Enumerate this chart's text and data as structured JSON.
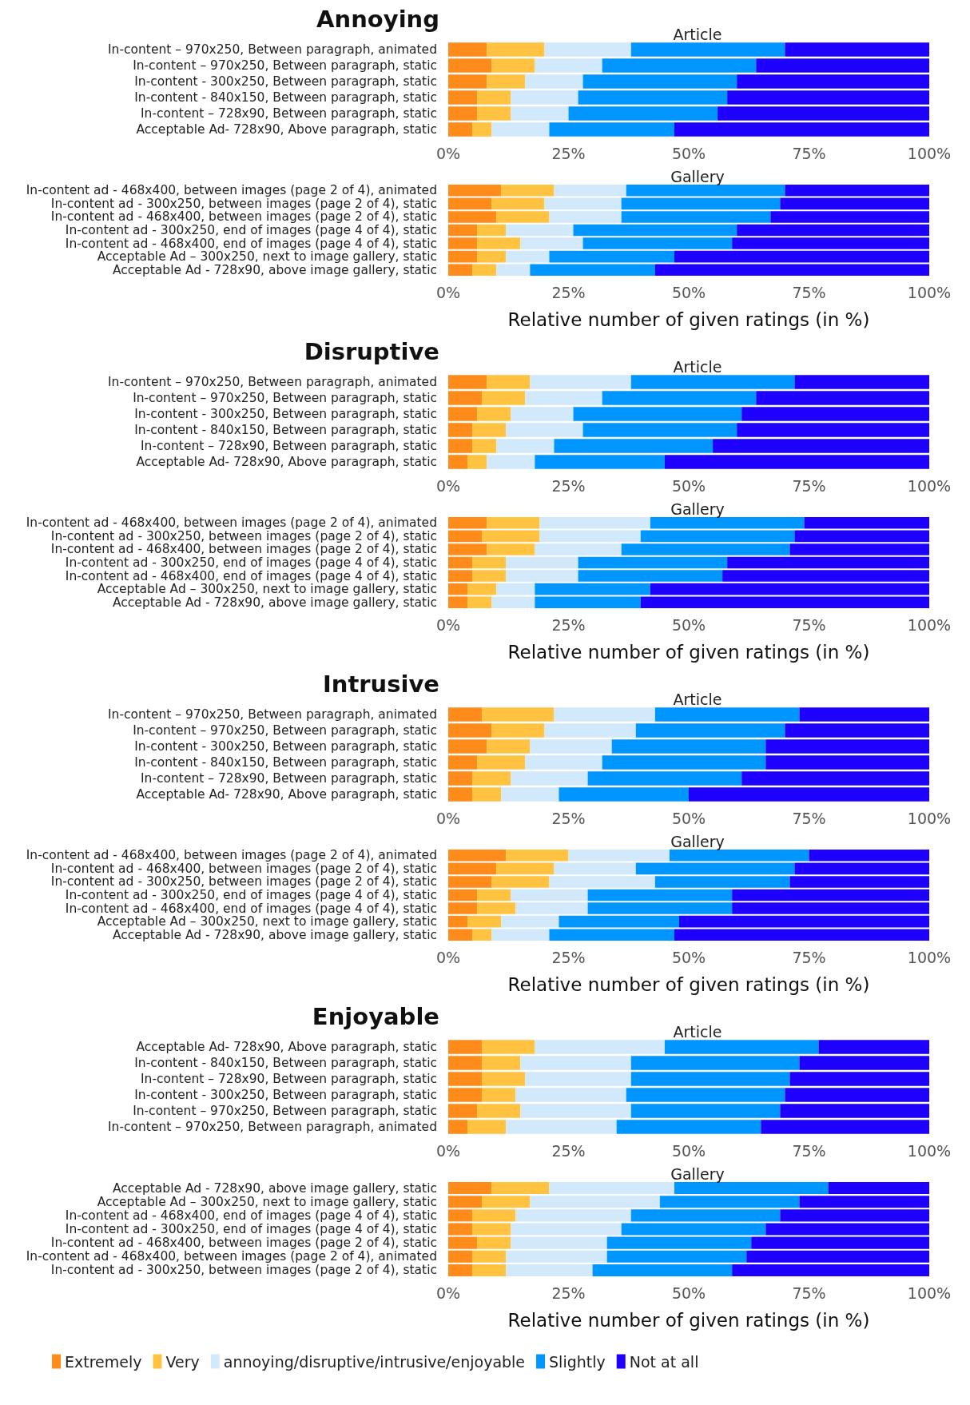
{
  "chart_data": [
    {
      "type": "bar",
      "orientation": "horizontal",
      "stacked": true,
      "title": "Annoying",
      "subtitle": "Article",
      "categories": [
        "In-content – 970x250, Between paragraph, animated",
        "In-content – 970x250, Between paragraph, static",
        "In-content - 300x250, Between paragraph, static",
        "In-content - 840x150, Between paragraph, static",
        "In-content – 728x90, Between paragraph, static",
        "Acceptable Ad- 728x90, Above paragraph, static"
      ],
      "series": [
        {
          "color": "#ff8c1a",
          "values": [
            8,
            9,
            8,
            6,
            6,
            5
          ]
        },
        {
          "color": "#ffc341",
          "values": [
            12,
            9,
            8,
            7,
            7,
            4
          ]
        },
        {
          "color": "#d1e9fb",
          "values": [
            18,
            14,
            12,
            14,
            12,
            12
          ]
        },
        {
          "color": "#0096ff",
          "values": [
            32,
            32,
            32,
            31,
            31,
            26
          ]
        },
        {
          "color": "#1e00ff",
          "values": [
            30,
            36,
            40,
            42,
            44,
            53
          ]
        }
      ],
      "xlim": [
        0,
        100
      ],
      "xticks": [
        {
          "value": 0,
          "label": "0%"
        },
        {
          "value": 25,
          "label": "25%"
        },
        {
          "value": 50,
          "label": "50%"
        },
        {
          "value": 75,
          "label": "75%"
        },
        {
          "value": 100,
          "label": "100%"
        }
      ],
      "grid": false,
      "legend": false
    },
    {
      "type": "bar",
      "orientation": "horizontal",
      "stacked": true,
      "subtitle": "Gallery",
      "xlabel": "Relative number of given ratings (in %)",
      "categories": [
        "In-content ad - 468x400, between images (page 2 of 4), animated",
        "In-content ad - 300x250, between images (page 2 of 4), static",
        "In-content ad - 468x400, between images (page 2 of 4), static",
        "In-content ad - 300x250, end of images (page 4 of 4), static",
        "In-content ad - 468x400, end of images (page 4 of 4), static",
        "Acceptable Ad – 300x250, next to image gallery, static",
        "Acceptable Ad - 728x90, above image gallery, static"
      ],
      "series": [
        {
          "color": "#ff8c1a",
          "values": [
            11,
            9,
            10,
            6,
            6,
            6,
            5
          ]
        },
        {
          "color": "#ffc341",
          "values": [
            11,
            11,
            11,
            6,
            9,
            6,
            5
          ]
        },
        {
          "color": "#d1e9fb",
          "values": [
            15,
            16,
            15,
            14,
            13,
            9,
            7
          ]
        },
        {
          "color": "#0096ff",
          "values": [
            33,
            33,
            31,
            34,
            31,
            26,
            26
          ]
        },
        {
          "color": "#1e00ff",
          "values": [
            30,
            31,
            33,
            40,
            41,
            53,
            57
          ]
        }
      ],
      "xlim": [
        0,
        100
      ],
      "xticks": [
        {
          "value": 0,
          "label": "0%"
        },
        {
          "value": 25,
          "label": "25%"
        },
        {
          "value": 50,
          "label": "50%"
        },
        {
          "value": 75,
          "label": "75%"
        },
        {
          "value": 100,
          "label": "100%"
        }
      ],
      "grid": false,
      "legend": false
    },
    {
      "type": "bar",
      "orientation": "horizontal",
      "stacked": true,
      "title": "Disruptive",
      "subtitle": "Article",
      "categories": [
        "In-content – 970x250, Between paragraph, animated",
        "In-content – 970x250, Between paragraph, static",
        "In-content - 300x250, Between paragraph, static",
        "In-content - 840x150, Between paragraph, static",
        "In-content – 728x90, Between paragraph, static",
        "Acceptable Ad- 728x90, Above paragraph, static"
      ],
      "series": [
        {
          "color": "#ff8c1a",
          "values": [
            8,
            7,
            6,
            5,
            5,
            4
          ]
        },
        {
          "color": "#ffc341",
          "values": [
            9,
            9,
            7,
            7,
            5,
            4
          ]
        },
        {
          "color": "#d1e9fb",
          "values": [
            21,
            16,
            13,
            16,
            12,
            10
          ]
        },
        {
          "color": "#0096ff",
          "values": [
            34,
            32,
            35,
            32,
            33,
            27
          ]
        },
        {
          "color": "#1e00ff",
          "values": [
            28,
            36,
            39,
            40,
            45,
            55
          ]
        }
      ],
      "xlim": [
        0,
        100
      ],
      "xticks": [
        {
          "value": 0,
          "label": "0%"
        },
        {
          "value": 25,
          "label": "25%"
        },
        {
          "value": 50,
          "label": "50%"
        },
        {
          "value": 75,
          "label": "75%"
        },
        {
          "value": 100,
          "label": "100%"
        }
      ],
      "grid": false,
      "legend": false
    },
    {
      "type": "bar",
      "orientation": "horizontal",
      "stacked": true,
      "subtitle": "Gallery",
      "xlabel": "Relative number of given ratings (in %)",
      "categories": [
        "In-content ad - 468x400, between images (page 2 of 4), animated",
        "In-content ad - 300x250, between images (page 2 of 4), static",
        "In-content ad - 468x400, between images (page 2 of 4), static",
        "In-content ad - 300x250, end of images (page 4 of 4), static",
        "In-content ad - 468x400, end of images (page 4 of 4), static",
        "Acceptable Ad – 300x250, next to image gallery, static",
        "Acceptable Ad - 728x90, above image gallery, static"
      ],
      "series": [
        {
          "color": "#ff8c1a",
          "values": [
            8,
            7,
            8,
            5,
            5,
            4,
            4
          ]
        },
        {
          "color": "#ffc341",
          "values": [
            11,
            12,
            10,
            7,
            7,
            6,
            5
          ]
        },
        {
          "color": "#d1e9fb",
          "values": [
            23,
            21,
            18,
            15,
            15,
            8,
            9
          ]
        },
        {
          "color": "#0096ff",
          "values": [
            32,
            32,
            35,
            31,
            30,
            24,
            22
          ]
        },
        {
          "color": "#1e00ff",
          "values": [
            26,
            28,
            29,
            42,
            43,
            58,
            60
          ]
        }
      ],
      "xlim": [
        0,
        100
      ],
      "xticks": [
        {
          "value": 0,
          "label": "0%"
        },
        {
          "value": 25,
          "label": "25%"
        },
        {
          "value": 50,
          "label": "50%"
        },
        {
          "value": 75,
          "label": "75%"
        },
        {
          "value": 100,
          "label": "100%"
        }
      ],
      "grid": false,
      "legend": false
    },
    {
      "type": "bar",
      "orientation": "horizontal",
      "stacked": true,
      "title": "Intrusive",
      "subtitle": "Article",
      "categories": [
        "In-content – 970x250, Between paragraph, animated",
        "In-content – 970x250, Between paragraph, static",
        "In-content - 300x250, Between paragraph, static",
        "In-content - 840x150, Between paragraph, static",
        "In-content – 728x90, Between paragraph, static",
        "Acceptable Ad- 728x90, Above paragraph, static"
      ],
      "series": [
        {
          "color": "#ff8c1a",
          "values": [
            7,
            9,
            8,
            6,
            5,
            5
          ]
        },
        {
          "color": "#ffc341",
          "values": [
            15,
            11,
            9,
            10,
            8,
            6
          ]
        },
        {
          "color": "#d1e9fb",
          "values": [
            21,
            19,
            17,
            16,
            16,
            12
          ]
        },
        {
          "color": "#0096ff",
          "values": [
            30,
            31,
            32,
            34,
            32,
            27
          ]
        },
        {
          "color": "#1e00ff",
          "values": [
            27,
            30,
            34,
            34,
            39,
            50
          ]
        }
      ],
      "xlim": [
        0,
        100
      ],
      "xticks": [
        {
          "value": 0,
          "label": "0%"
        },
        {
          "value": 25,
          "label": "25%"
        },
        {
          "value": 50,
          "label": "50%"
        },
        {
          "value": 75,
          "label": "75%"
        },
        {
          "value": 100,
          "label": "100%"
        }
      ],
      "grid": false,
      "legend": false
    },
    {
      "type": "bar",
      "orientation": "horizontal",
      "stacked": true,
      "subtitle": "Gallery",
      "xlabel": "Relative number of given ratings (in %)",
      "categories": [
        "In-content ad - 468x400, between images (page 2 of 4), animated",
        "In-content ad - 468x400, between images (page 2 of 4), static",
        "In-content ad - 300x250, between images (page 2 of 4), static",
        "In-content ad - 300x250, end of images (page 4 of 4), static",
        "In-content ad - 468x400, end of images (page 4 of 4), static",
        "Acceptable Ad – 300x250, next to image gallery, static",
        "Acceptable Ad - 728x90, above image gallery, static"
      ],
      "series": [
        {
          "color": "#ff8c1a",
          "values": [
            12,
            10,
            9,
            6,
            6,
            4,
            5
          ]
        },
        {
          "color": "#ffc341",
          "values": [
            13,
            12,
            12,
            7,
            8,
            7,
            4
          ]
        },
        {
          "color": "#d1e9fb",
          "values": [
            21,
            17,
            22,
            16,
            15,
            12,
            12
          ]
        },
        {
          "color": "#0096ff",
          "values": [
            29,
            33,
            28,
            30,
            30,
            25,
            26
          ]
        },
        {
          "color": "#1e00ff",
          "values": [
            25,
            28,
            29,
            41,
            41,
            52,
            53
          ]
        }
      ],
      "xlim": [
        0,
        100
      ],
      "xticks": [
        {
          "value": 0,
          "label": "0%"
        },
        {
          "value": 25,
          "label": "25%"
        },
        {
          "value": 50,
          "label": "50%"
        },
        {
          "value": 75,
          "label": "75%"
        },
        {
          "value": 100,
          "label": "100%"
        }
      ],
      "grid": false,
      "legend": false
    },
    {
      "type": "bar",
      "orientation": "horizontal",
      "stacked": true,
      "title": "Enjoyable",
      "subtitle": "Article",
      "categories": [
        "Acceptable Ad- 728x90, Above paragraph, static",
        "In-content - 840x150, Between paragraph, static",
        "In-content – 728x90, Between paragraph, static",
        "In-content - 300x250, Between paragraph, static",
        "In-content – 970x250, Between paragraph, static",
        "In-content – 970x250, Between paragraph, animated"
      ],
      "series": [
        {
          "color": "#ff8c1a",
          "values": [
            7,
            7,
            7,
            7,
            6,
            4
          ]
        },
        {
          "color": "#ffc341",
          "values": [
            11,
            8,
            9,
            7,
            9,
            8
          ]
        },
        {
          "color": "#d1e9fb",
          "values": [
            27,
            23,
            22,
            23,
            23,
            23
          ]
        },
        {
          "color": "#0096ff",
          "values": [
            32,
            35,
            33,
            33,
            31,
            30
          ]
        },
        {
          "color": "#1e00ff",
          "values": [
            23,
            27,
            29,
            30,
            31,
            35
          ]
        }
      ],
      "xlim": [
        0,
        100
      ],
      "xticks": [
        {
          "value": 0,
          "label": "0%"
        },
        {
          "value": 25,
          "label": "25%"
        },
        {
          "value": 50,
          "label": "50%"
        },
        {
          "value": 75,
          "label": "75%"
        },
        {
          "value": 100,
          "label": "100%"
        }
      ],
      "grid": false,
      "legend": false
    },
    {
      "type": "bar",
      "orientation": "horizontal",
      "stacked": true,
      "subtitle": "Gallery",
      "xlabel": "Relative number of given ratings (in %)",
      "categories": [
        "Acceptable Ad - 728x90, above image gallery, static",
        "Acceptable Ad – 300x250, next to image gallery, static",
        "In-content ad - 468x400, end of images (page 4 of 4), static",
        "In-content ad - 300x250, end of images (page 4 of 4), static",
        "In-content ad - 468x400, between images (page 2 of 4), static",
        "In-content ad - 468x400, between images (page 2 of 4), animated",
        "In-content ad - 300x250, between images (page 2 of 4), static"
      ],
      "series": [
        {
          "name": "Extremely",
          "color": "#ff8c1a",
          "values": [
            9,
            7,
            5,
            5,
            6,
            5,
            5
          ]
        },
        {
          "name": "Very",
          "color": "#ffc341",
          "values": [
            12,
            10,
            9,
            8,
            7,
            7,
            7
          ]
        },
        {
          "name": "annoying/disruptive/intrusive/enjoyable",
          "color": "#d1e9fb",
          "values": [
            26,
            27,
            24,
            23,
            20,
            21,
            18
          ]
        },
        {
          "name": "Slightly",
          "color": "#0096ff",
          "values": [
            32,
            29,
            31,
            30,
            30,
            29,
            29
          ]
        },
        {
          "name": "Not at all",
          "color": "#1e00ff",
          "values": [
            21,
            27,
            31,
            34,
            37,
            38,
            41
          ]
        }
      ],
      "xlim": [
        0,
        100
      ],
      "xticks": [
        {
          "value": 0,
          "label": "0%"
        },
        {
          "value": 25,
          "label": "25%"
        },
        {
          "value": 50,
          "label": "50%"
        },
        {
          "value": 75,
          "label": "75%"
        },
        {
          "value": 100,
          "label": "100%"
        }
      ],
      "grid": false,
      "legend": "bottom"
    }
  ]
}
